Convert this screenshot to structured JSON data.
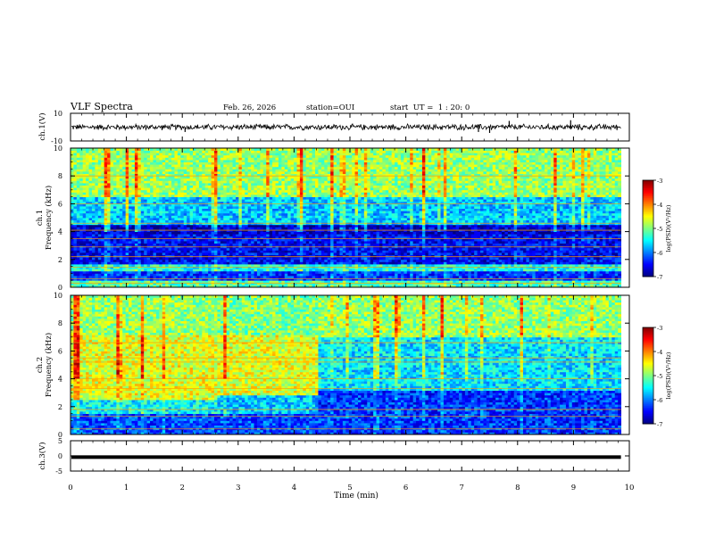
{
  "header": {
    "title": "VLF Spectra",
    "date": "Feb. 26, 2026",
    "station": "station=OUI",
    "start": "start  UT =  1 : 20: 0"
  },
  "chart_data": [
    {
      "type": "line",
      "name": "ch1-waveform",
      "ylabel": "ch.1(V)",
      "ylim": [
        -10,
        10
      ],
      "yticks": [
        10,
        -10
      ],
      "xlim": [
        0,
        10
      ],
      "data_end_min": 9.85,
      "baseline_v": 0,
      "noise_amplitude_v": 2.5,
      "spikes": [
        {
          "t": 2.05,
          "v": -3.5
        },
        {
          "t": 7.3,
          "v": -3.5
        },
        {
          "t": 7.5,
          "v": -4.2
        },
        {
          "t": 7.85,
          "v": 4.5
        },
        {
          "t": 8.95,
          "v": 5.0
        }
      ]
    },
    {
      "type": "heatmap",
      "name": "ch1-spectrogram",
      "ylabel": "ch.1\nFrequency (kHz)",
      "ylim": [
        0,
        10
      ],
      "yticks": [
        "0",
        "2",
        "4",
        "6",
        "8",
        "10"
      ],
      "xlim": [
        0,
        10
      ],
      "data_end_min": 9.85,
      "colorbar": {
        "label": "log(PSD)(V²/Hz)",
        "range": [
          -7,
          -3
        ],
        "ticks": [
          "-3",
          "-4",
          "-5",
          "-6",
          "-7"
        ]
      },
      "bands_khz_log_psd": [
        {
          "f0": 0.0,
          "f1": 0.5,
          "level": -5.2
        },
        {
          "f0": 0.5,
          "f1": 1.2,
          "level": -6.3
        },
        {
          "f0": 1.2,
          "f1": 1.6,
          "level": -5.4
        },
        {
          "f0": 1.6,
          "f1": 3.8,
          "level": -6.5
        },
        {
          "f0": 3.8,
          "f1": 4.5,
          "level": -6.7
        },
        {
          "f0": 4.5,
          "f1": 6.5,
          "level": -5.7
        },
        {
          "f0": 6.5,
          "f1": 10.0,
          "level": -4.9
        }
      ],
      "tones_khz": [
        0.3,
        0.6,
        1.45,
        2.2,
        2.9,
        3.5,
        4.1,
        4.6,
        6.0,
        8.0
      ]
    },
    {
      "type": "heatmap",
      "name": "ch2-spectrogram",
      "ylabel": "ch.2\nFrequency (kHz)",
      "ylim": [
        0,
        10
      ],
      "yticks": [
        "0",
        "2",
        "4",
        "6",
        "8",
        "10"
      ],
      "xlim": [
        0,
        10
      ],
      "data_end_min": 9.85,
      "colorbar": {
        "label": "log(PSD)(V²/Hz)",
        "range": [
          -7,
          -3
        ],
        "ticks": [
          "-3",
          "-4",
          "-5",
          "-6",
          "-7"
        ]
      },
      "segments_min": [
        {
          "t0": 0.0,
          "t1": 2.6,
          "bands": [
            {
              "f0": 0,
              "f1": 1.5,
              "level": -6.2
            },
            {
              "f0": 1.5,
              "f1": 2.5,
              "level": -5.5
            },
            {
              "f0": 2.5,
              "f1": 7.2,
              "level": -4.6
            },
            {
              "f0": 7.2,
              "f1": 10,
              "level": -4.9
            }
          ]
        },
        {
          "t0": 2.6,
          "t1": 4.45,
          "bands": [
            {
              "f0": 0,
              "f1": 1.5,
              "level": -6.2
            },
            {
              "f0": 1.5,
              "f1": 2.8,
              "level": -5.7
            },
            {
              "f0": 2.8,
              "f1": 7.2,
              "level": -4.6
            },
            {
              "f0": 7.2,
              "f1": 10,
              "level": -5.0
            }
          ]
        },
        {
          "t0": 4.45,
          "t1": 9.85,
          "bands": [
            {
              "f0": 0,
              "f1": 1.5,
              "level": -6.3
            },
            {
              "f0": 1.5,
              "f1": 3.2,
              "level": -6.3
            },
            {
              "f0": 3.2,
              "f1": 7.0,
              "level": -5.6
            },
            {
              "f0": 7.0,
              "f1": 10,
              "level": -4.9
            }
          ]
        }
      ],
      "tones_khz": [
        0.4,
        1.3,
        1.8,
        3.3,
        4.0,
        5.2,
        5.5,
        6.6
      ]
    },
    {
      "type": "line",
      "name": "ch3-waveform",
      "ylabel": "ch.3(V)",
      "ylim": [
        -5,
        5
      ],
      "yticks": [
        "5",
        "0",
        "-5"
      ],
      "xlim": [
        0,
        10
      ],
      "data_end_min": 9.85,
      "baseline_v": -0.4
    }
  ],
  "xaxis": {
    "label": "Time (min)",
    "ticks": [
      "0",
      "1",
      "2",
      "3",
      "4",
      "5",
      "6",
      "7",
      "8",
      "9",
      "10"
    ]
  },
  "ch1_yticks": {
    "top": "10",
    "bottom": "-10"
  }
}
